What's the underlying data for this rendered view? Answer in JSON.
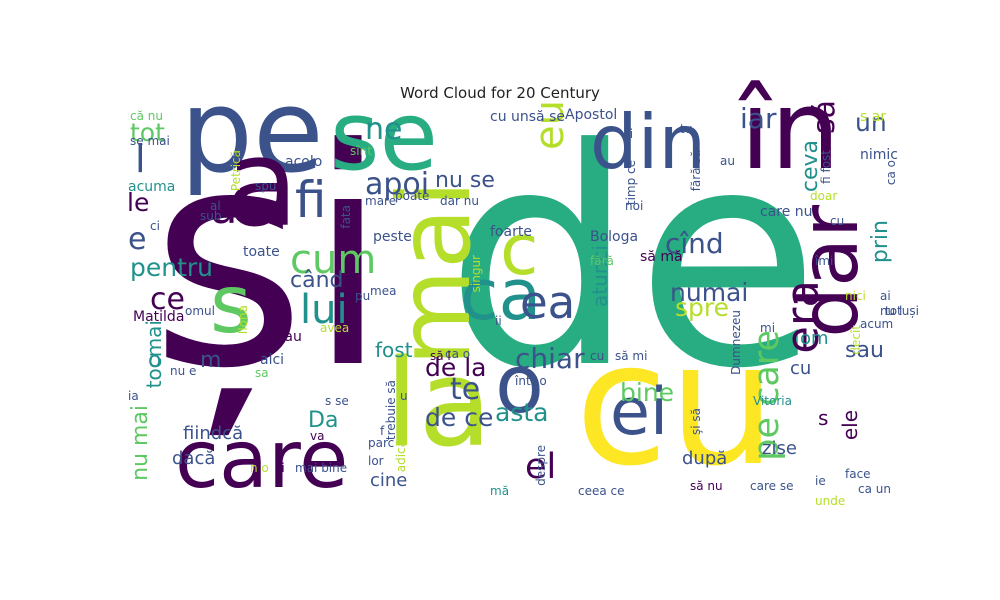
{
  "chart_data": {
    "type": "wordcloud",
    "title": "Word Cloud for 20 Century",
    "palette": [
      "#440154",
      "#3b528b",
      "#21918c",
      "#27ad81",
      "#5ec962",
      "#b5de2b",
      "#fde725"
    ],
    "words": [
      {
        "text": "de",
        "size": 600,
        "color": "#27ad81"
      },
      {
        "text": "și",
        "size": 560,
        "color": "#440154"
      },
      {
        "text": "cu",
        "size": 470,
        "color": "#fde725"
      },
      {
        "text": "pe",
        "size": 330,
        "color": "#3b528b"
      },
      {
        "text": "în",
        "size": 300,
        "color": "#440154"
      },
      {
        "text": "dar",
        "size": 290,
        "color": "#440154"
      },
      {
        "text": "la",
        "size": 285,
        "color": "#b5de2b"
      },
      {
        "text": "care",
        "size": 270,
        "color": "#440154"
      },
      {
        "text": "se",
        "size": 265,
        "color": "#27ad81"
      },
      {
        "text": "mai",
        "size": 255,
        "color": "#b5de2b"
      },
      {
        "text": "o",
        "size": 250,
        "color": "#3b528b"
      },
      {
        "text": "din",
        "size": 240,
        "color": "#3b528b"
      },
      {
        "text": "ca",
        "size": 235,
        "color": "#21918c"
      },
      {
        "text": "s",
        "size": 230,
        "color": "#5ec962"
      },
      {
        "text": "ei",
        "size": 225,
        "color": "#3b528b"
      },
      {
        "text": "a",
        "size": 220,
        "color": "#440154"
      },
      {
        "text": "fi",
        "size": 190,
        "color": "#3b528b"
      },
      {
        "text": "era",
        "size": 185,
        "color": "#440154"
      },
      {
        "text": "c",
        "size": 180,
        "color": "#b5de2b"
      },
      {
        "text": "ea",
        "size": 175,
        "color": "#3b528b"
      },
      {
        "text": "lui",
        "size": 170,
        "color": "#21918c"
      },
      {
        "text": "cum",
        "size": 168,
        "color": "#5ec962"
      },
      {
        "text": "ar",
        "size": 165,
        "color": "#440154"
      },
      {
        "text": "el",
        "size": 160,
        "color": "#440154"
      },
      {
        "text": "pe care",
        "size": 158,
        "color": "#5ec962"
      },
      {
        "text": "eu",
        "size": 155,
        "color": "#b5de2b"
      },
      {
        "text": "te",
        "size": 150,
        "color": "#3b528b"
      },
      {
        "text": "chiar",
        "size": 148,
        "color": "#3b528b"
      },
      {
        "text": "ce",
        "size": 146,
        "color": "#440154"
      },
      {
        "text": "asta",
        "size": 144,
        "color": "#21918c"
      },
      {
        "text": "de la",
        "size": 142,
        "color": "#440154"
      },
      {
        "text": "apoi",
        "size": 140,
        "color": "#3b528b"
      },
      {
        "text": "să",
        "size": 138,
        "color": "#440154"
      },
      {
        "text": "iar",
        "size": 136,
        "color": "#3b528b"
      },
      {
        "text": "un",
        "size": 134,
        "color": "#3b528b"
      },
      {
        "text": "numai",
        "size": 132,
        "color": "#3b528b"
      },
      {
        "text": "ne",
        "size": 130,
        "color": "#21918c"
      },
      {
        "text": "bine",
        "size": 128,
        "color": "#5ec962"
      },
      {
        "text": "de ce",
        "size": 126,
        "color": "#3b528b"
      },
      {
        "text": "pentru",
        "size": 124,
        "color": "#21918c"
      },
      {
        "text": "fost",
        "size": 122,
        "color": "#21918c"
      },
      {
        "text": "sau",
        "size": 120,
        "color": "#3b528b"
      },
      {
        "text": "spre",
        "size": 118,
        "color": "#b5de2b"
      },
      {
        "text": "nu se",
        "size": 116,
        "color": "#3b528b"
      },
      {
        "text": "ceva",
        "size": 114,
        "color": "#21918c"
      },
      {
        "text": "cînd",
        "size": 112,
        "color": "#3b528b"
      },
      {
        "text": "când",
        "size": 110,
        "color": "#3b528b"
      },
      {
        "text": "atunci",
        "size": 108,
        "color": "#21918c"
      },
      {
        "text": "prin",
        "size": 106,
        "color": "#21918c"
      },
      {
        "text": "e",
        "size": 104,
        "color": "#3b528b"
      },
      {
        "text": "l",
        "size": 102,
        "color": "#3b528b"
      },
      {
        "text": "tot",
        "size": 100,
        "color": "#5ec962"
      },
      {
        "text": "le",
        "size": 99,
        "color": "#440154"
      },
      {
        "text": "Da",
        "size": 98,
        "color": "#21918c"
      },
      {
        "text": "m",
        "size": 97,
        "color": "#3b528b"
      },
      {
        "text": "cu",
        "size": 96,
        "color": "#3b528b"
      },
      {
        "text": "om",
        "size": 95,
        "color": "#21918c"
      },
      {
        "text": "s",
        "size": 94,
        "color": "#440154"
      },
      {
        "text": "ele",
        "size": 93,
        "color": "#440154"
      },
      {
        "text": "nu mai",
        "size": 92,
        "color": "#5ec962"
      },
      {
        "text": "o",
        "size": 91,
        "color": "#21918c"
      },
      {
        "text": "tocmai",
        "size": 90,
        "color": "#21918c"
      },
      {
        "text": "fiindcă",
        "size": 89,
        "color": "#3b528b"
      },
      {
        "text": "dacă",
        "size": 88,
        "color": "#3b528b"
      },
      {
        "text": "după",
        "size": 87,
        "color": "#3b528b"
      },
      {
        "text": "zise",
        "size": 86,
        "color": "#3b528b"
      },
      {
        "text": "cine",
        "size": 85,
        "color": "#3b528b"
      },
      {
        "text": "Apostol",
        "size": 84,
        "color": "#3b528b"
      },
      {
        "text": "Bologa",
        "size": 83,
        "color": "#3b528b"
      },
      {
        "text": "foarte",
        "size": 82,
        "color": "#3b528b"
      },
      {
        "text": "peste",
        "size": 81,
        "color": "#3b528b"
      },
      {
        "text": "toate",
        "size": 80,
        "color": "#3b528b"
      },
      {
        "text": "acolo",
        "size": 79,
        "color": "#3b528b"
      },
      {
        "text": "acuma",
        "size": 78,
        "color": "#21918c"
      },
      {
        "text": "Matilda",
        "size": 77,
        "color": "#440154"
      },
      {
        "text": "cu unsă se",
        "size": 76,
        "color": "#3b528b"
      },
      {
        "text": "nimic",
        "size": 75,
        "color": "#3b528b"
      },
      {
        "text": "s ar",
        "size": 74,
        "color": "#b5de2b"
      },
      {
        "text": "care nu",
        "size": 73,
        "color": "#3b528b"
      },
      {
        "text": "să mă",
        "size": 72,
        "color": "#440154"
      },
      {
        "text": "Dumnezeu",
        "size": 71,
        "color": "#3b528b"
      },
      {
        "text": "fără",
        "size": 70,
        "color": "#5ec962"
      },
      {
        "text": "singur",
        "size": 69,
        "color": "#b5de2b"
      },
      {
        "text": "cu",
        "size": 68,
        "color": "#3b528b"
      },
      {
        "text": "ii",
        "size": 67,
        "color": "#3b528b"
      },
      {
        "text": "ca o",
        "size": 66,
        "color": "#3b528b"
      },
      {
        "text": "să mi",
        "size": 65,
        "color": "#3b528b"
      },
      {
        "text": "mea",
        "size": 64,
        "color": "#3b528b"
      },
      {
        "text": "pu",
        "size": 63,
        "color": "#3b528b"
      },
      {
        "text": "erau",
        "size": 62,
        "color": "#440154"
      },
      {
        "text": "avea",
        "size": 61,
        "color": "#b5de2b"
      },
      {
        "text": "aici",
        "size": 60,
        "color": "#3b528b"
      },
      {
        "text": "sa",
        "size": 59,
        "color": "#5ec962"
      },
      {
        "text": "s se",
        "size": 58,
        "color": "#3b528b"
      },
      {
        "text": "u",
        "size": 57,
        "color": "#3b528b"
      },
      {
        "text": "f",
        "size": 56,
        "color": "#3b528b"
      },
      {
        "text": "va",
        "size": 55,
        "color": "#440154"
      },
      {
        "text": "parc",
        "size": 54,
        "color": "#3b528b"
      },
      {
        "text": "lor",
        "size": 53,
        "color": "#3b528b"
      },
      {
        "text": "adică",
        "size": 52,
        "color": "#b5de2b"
      },
      {
        "text": "într o",
        "size": 51,
        "color": "#3b528b"
      },
      {
        "text": "despre",
        "size": 50,
        "color": "#3b528b"
      },
      {
        "text": "ceea ce",
        "size": 49,
        "color": "#3b528b"
      },
      {
        "text": "să nu",
        "size": 48,
        "color": "#440154"
      },
      {
        "text": "care se",
        "size": 47,
        "color": "#3b528b"
      },
      {
        "text": "ca un",
        "size": 46,
        "color": "#3b528b"
      },
      {
        "text": "unde",
        "size": 45,
        "color": "#b5de2b"
      },
      {
        "text": "ie",
        "size": 44,
        "color": "#3b528b"
      },
      {
        "text": "mă",
        "size": 43,
        "color": "#21918c"
      },
      {
        "text": "ia",
        "size": 42,
        "color": "#3b528b"
      },
      {
        "text": "nu e",
        "size": 41,
        "color": "#3b528b"
      },
      {
        "text": "ci",
        "size": 40,
        "color": "#3b528b"
      },
      {
        "text": "sub",
        "size": 39,
        "color": "#3b528b"
      },
      {
        "text": "al",
        "size": 38,
        "color": "#3b528b"
      },
      {
        "text": "spu",
        "size": 37,
        "color": "#3b528b"
      },
      {
        "text": "mare",
        "size": 36,
        "color": "#3b528b"
      },
      {
        "text": "sînt",
        "size": 35,
        "color": "#5ec962"
      },
      {
        "text": "noi",
        "size": 34,
        "color": "#3b528b"
      },
      {
        "text": "ti",
        "size": 33,
        "color": "#3b528b"
      },
      {
        "text": "tu",
        "size": 32,
        "color": "#3b528b"
      },
      {
        "text": "au",
        "size": 31,
        "color": "#3b528b"
      },
      {
        "text": "acum",
        "size": 30,
        "color": "#3b528b"
      },
      {
        "text": "nici",
        "size": 29,
        "color": "#b5de2b"
      },
      {
        "text": "ai",
        "size": 28,
        "color": "#3b528b"
      },
      {
        "text": "nu l",
        "size": 27,
        "color": "#3b528b"
      },
      {
        "text": "îmi",
        "size": 26,
        "color": "#3b528b"
      },
      {
        "text": "decît",
        "size": 25,
        "color": "#b5de2b"
      },
      {
        "text": "mi",
        "size": 24,
        "color": "#3b528b"
      },
      {
        "text": "cu",
        "size": 23,
        "color": "#3b528b"
      },
      {
        "text": "doar",
        "size": 22,
        "color": "#b5de2b"
      },
      {
        "text": "poate",
        "size": 21,
        "color": "#3b528b"
      },
      {
        "text": "dar nu",
        "size": 20,
        "color": "#3b528b"
      },
      {
        "text": "şi să",
        "size": 19,
        "color": "#3b528b"
      },
      {
        "text": "Vitoria",
        "size": 18,
        "color": "#21918c"
      },
      {
        "text": "Petrică",
        "size": 17,
        "color": "#b5de2b"
      },
      {
        "text": "fără să",
        "size": 16,
        "color": "#3b528b"
      },
      {
        "text": "timp ce",
        "size": 15,
        "color": "#3b528b"
      },
      {
        "text": "fi fost",
        "size": 14,
        "color": "#3b528b"
      },
      {
        "text": "ca o",
        "size": 13,
        "color": "#3b528b"
      },
      {
        "text": "totuși",
        "size": 12,
        "color": "#3b528b"
      },
      {
        "text": "Ilona",
        "size": 11,
        "color": "#b5de2b"
      },
      {
        "text": "fata",
        "size": 10,
        "color": "#3b528b"
      },
      {
        "text": "face",
        "size": 9,
        "color": "#3b528b"
      },
      {
        "text": "omul",
        "size": 8,
        "color": "#3b528b"
      },
      {
        "text": "trebuie să",
        "size": 7,
        "color": "#3b528b"
      },
      {
        "text": "să l",
        "size": 6,
        "color": "#440154"
      },
      {
        "text": "îi",
        "size": 5,
        "color": "#440154"
      },
      {
        "text": "n o",
        "size": 4,
        "color": "#b5de2b"
      },
      {
        "text": "mai bine",
        "size": 3,
        "color": "#3b528b"
      },
      {
        "text": "că nu",
        "size": 2,
        "color": "#5ec962"
      },
      {
        "text": "se mai",
        "size": 1,
        "color": "#3b528b"
      }
    ]
  }
}
